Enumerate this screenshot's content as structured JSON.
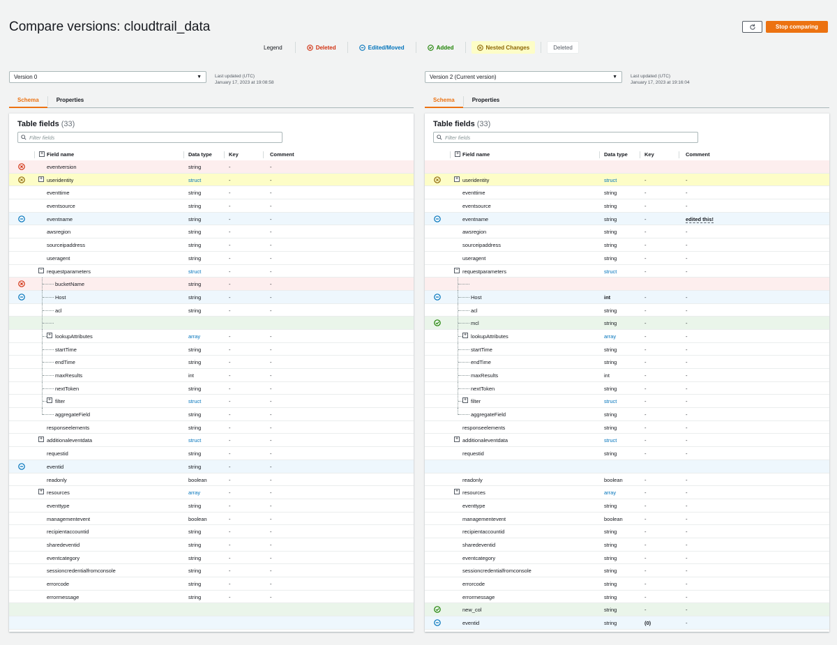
{
  "title": "Compare versions: cloudtrail_data",
  "stop_label": "Stop comparing",
  "legend": {
    "label": "Legend",
    "deleted": "Deleted",
    "edited": "Edited/Moved",
    "added": "Added",
    "nested": "Nested Changes",
    "plain": "Deleted"
  },
  "colors": {
    "accent": "#ec7211",
    "deleted": "#d13212",
    "edited": "#0073bb",
    "added": "#1d8102",
    "nested": "#8d6605"
  },
  "headers": {
    "field": "Field name",
    "type": "Data type",
    "key": "Key",
    "comment": "Comment"
  },
  "tabs": {
    "schema": "Schema",
    "properties": "Properties"
  },
  "left": {
    "version": "Version 0",
    "updated_label": "Last updated (UTC)",
    "updated_value": "January 17, 2023 at 19:08:58",
    "table_title": "Table fields",
    "count": "(33)",
    "filter_placeholder": "Filter fields",
    "rows": [
      {
        "s": "deleted",
        "name": "eventversion",
        "type": "string",
        "key": "-",
        "comment": "-",
        "depth": 0
      },
      {
        "s": "nested",
        "name": "useridentity",
        "type": "struct",
        "key": "-",
        "comment": "-",
        "depth": 0,
        "exp": "+",
        "link": true
      },
      {
        "s": "",
        "name": "eventtime",
        "type": "string",
        "key": "-",
        "comment": "-",
        "depth": 0
      },
      {
        "s": "",
        "name": "eventsource",
        "type": "string",
        "key": "-",
        "comment": "-",
        "depth": 0
      },
      {
        "s": "edited",
        "name": "eventname",
        "type": "string",
        "key": "-",
        "comment": "-",
        "depth": 0
      },
      {
        "s": "",
        "name": "awsregion",
        "type": "string",
        "key": "-",
        "comment": "-",
        "depth": 0
      },
      {
        "s": "",
        "name": "sourceipaddress",
        "type": "string",
        "key": "-",
        "comment": "-",
        "depth": 0
      },
      {
        "s": "",
        "name": "useragent",
        "type": "string",
        "key": "-",
        "comment": "-",
        "depth": 0
      },
      {
        "s": "",
        "name": "requestparameters",
        "type": "struct",
        "key": "-",
        "comment": "-",
        "depth": 0,
        "exp": "−",
        "link": true
      },
      {
        "s": "deleted",
        "name": "bucketName",
        "type": "string",
        "key": "-",
        "comment": "-",
        "depth": 1,
        "icon": true
      },
      {
        "s": "edited",
        "name": "Host",
        "type": "string",
        "key": "-",
        "comment": "-",
        "depth": 1,
        "icon": true
      },
      {
        "s": "",
        "name": "acl",
        "type": "string",
        "key": "-",
        "comment": "-",
        "depth": 1
      },
      {
        "s": "added",
        "name": "",
        "type": "",
        "key": "",
        "comment": "",
        "depth": 1,
        "blank": true
      },
      {
        "s": "",
        "name": "lookupAttributes",
        "type": "array",
        "key": "-",
        "comment": "-",
        "depth": 1,
        "exp": "+",
        "link": true
      },
      {
        "s": "",
        "name": "startTime",
        "type": "string",
        "key": "-",
        "comment": "-",
        "depth": 1
      },
      {
        "s": "",
        "name": "endTime",
        "type": "string",
        "key": "-",
        "comment": "-",
        "depth": 1
      },
      {
        "s": "",
        "name": "maxResults",
        "type": "int",
        "key": "-",
        "comment": "-",
        "depth": 1
      },
      {
        "s": "",
        "name": "nextToken",
        "type": "string",
        "key": "-",
        "comment": "-",
        "depth": 1
      },
      {
        "s": "",
        "name": "filter",
        "type": "struct",
        "key": "-",
        "comment": "-",
        "depth": 1,
        "exp": "+",
        "link": true
      },
      {
        "s": "",
        "name": "aggregateField",
        "type": "string",
        "key": "-",
        "comment": "-",
        "depth": 1,
        "last": true
      },
      {
        "s": "",
        "name": "responseelements",
        "type": "string",
        "key": "-",
        "comment": "-",
        "depth": 0
      },
      {
        "s": "",
        "name": "additionaleventdata",
        "type": "struct",
        "key": "-",
        "comment": "-",
        "depth": 0,
        "exp": "+",
        "link": true
      },
      {
        "s": "",
        "name": "requestid",
        "type": "string",
        "key": "-",
        "comment": "-",
        "depth": 0
      },
      {
        "s": "edited",
        "name": "eventid",
        "type": "string",
        "key": "-",
        "comment": "-",
        "depth": 0
      },
      {
        "s": "",
        "name": "readonly",
        "type": "boolean",
        "key": "-",
        "comment": "-",
        "depth": 0
      },
      {
        "s": "",
        "name": "resources",
        "type": "array",
        "key": "-",
        "comment": "-",
        "depth": 0,
        "exp": "+",
        "link": true
      },
      {
        "s": "",
        "name": "eventtype",
        "type": "string",
        "key": "-",
        "comment": "-",
        "depth": 0
      },
      {
        "s": "",
        "name": "managementevent",
        "type": "boolean",
        "key": "-",
        "comment": "-",
        "depth": 0
      },
      {
        "s": "",
        "name": "recipientaccountid",
        "type": "string",
        "key": "-",
        "comment": "-",
        "depth": 0
      },
      {
        "s": "",
        "name": "sharedeventid",
        "type": "string",
        "key": "-",
        "comment": "-",
        "depth": 0
      },
      {
        "s": "",
        "name": "eventcategory",
        "type": "string",
        "key": "-",
        "comment": "-",
        "depth": 0
      },
      {
        "s": "",
        "name": "sessioncredentialfromconsole",
        "type": "string",
        "key": "-",
        "comment": "-",
        "depth": 0
      },
      {
        "s": "",
        "name": "errorcode",
        "type": "string",
        "key": "-",
        "comment": "-",
        "depth": 0
      },
      {
        "s": "",
        "name": "errormessage",
        "type": "string",
        "key": "-",
        "comment": "-",
        "depth": 0
      },
      {
        "s": "added",
        "name": "",
        "type": "",
        "key": "",
        "comment": "",
        "depth": 0,
        "blank": true
      },
      {
        "s": "edited",
        "name": "",
        "type": "",
        "key": "",
        "comment": "",
        "depth": 0,
        "blank": true
      }
    ]
  },
  "right": {
    "version": "Version 2 (Current version)",
    "updated_label": "Last updated (UTC)",
    "updated_value": "January 17, 2023 at 19:16:04",
    "table_title": "Table fields",
    "count": "(33)",
    "filter_placeholder": "Filter fields",
    "rows": [
      {
        "s": "deleted",
        "name": "",
        "type": "",
        "key": "",
        "comment": "",
        "depth": 0,
        "blank": true
      },
      {
        "s": "nested",
        "name": "useridentity",
        "type": "struct",
        "key": "-",
        "comment": "-",
        "depth": 0,
        "exp": "+",
        "link": true
      },
      {
        "s": "",
        "name": "eventtime",
        "type": "string",
        "key": "-",
        "comment": "-",
        "depth": 0
      },
      {
        "s": "",
        "name": "eventsource",
        "type": "string",
        "key": "-",
        "comment": "-",
        "depth": 0
      },
      {
        "s": "edited",
        "name": "eventname",
        "type": "string",
        "key": "-",
        "comment": "edited this!",
        "depth": 0,
        "commentBold": true
      },
      {
        "s": "",
        "name": "awsregion",
        "type": "string",
        "key": "-",
        "comment": "-",
        "depth": 0
      },
      {
        "s": "",
        "name": "sourceipaddress",
        "type": "string",
        "key": "-",
        "comment": "-",
        "depth": 0
      },
      {
        "s": "",
        "name": "useragent",
        "type": "string",
        "key": "-",
        "comment": "-",
        "depth": 0
      },
      {
        "s": "",
        "name": "requestparameters",
        "type": "struct",
        "key": "-",
        "comment": "-",
        "depth": 0,
        "exp": "−",
        "link": true
      },
      {
        "s": "deleted",
        "name": "",
        "type": "",
        "key": "",
        "comment": "",
        "depth": 1,
        "blank": true
      },
      {
        "s": "edited",
        "name": "Host",
        "type": "int",
        "key": "-",
        "comment": "-",
        "depth": 1,
        "icon": true,
        "typeBold": true
      },
      {
        "s": "",
        "name": "acl",
        "type": "string",
        "key": "-",
        "comment": "-",
        "depth": 1
      },
      {
        "s": "added",
        "name": "mcl",
        "type": "string",
        "key": "-",
        "comment": "-",
        "depth": 1,
        "icon": true
      },
      {
        "s": "",
        "name": "lookupAttributes",
        "type": "array",
        "key": "-",
        "comment": "-",
        "depth": 1,
        "exp": "+",
        "link": true
      },
      {
        "s": "",
        "name": "startTime",
        "type": "string",
        "key": "-",
        "comment": "-",
        "depth": 1
      },
      {
        "s": "",
        "name": "endTime",
        "type": "string",
        "key": "-",
        "comment": "-",
        "depth": 1
      },
      {
        "s": "",
        "name": "maxResults",
        "type": "int",
        "key": "-",
        "comment": "-",
        "depth": 1
      },
      {
        "s": "",
        "name": "nextToken",
        "type": "string",
        "key": "-",
        "comment": "-",
        "depth": 1
      },
      {
        "s": "",
        "name": "filter",
        "type": "struct",
        "key": "-",
        "comment": "-",
        "depth": 1,
        "exp": "+",
        "link": true
      },
      {
        "s": "",
        "name": "aggregateField",
        "type": "string",
        "key": "-",
        "comment": "-",
        "depth": 1,
        "last": true
      },
      {
        "s": "",
        "name": "responseelements",
        "type": "string",
        "key": "-",
        "comment": "-",
        "depth": 0
      },
      {
        "s": "",
        "name": "additionaleventdata",
        "type": "struct",
        "key": "-",
        "comment": "-",
        "depth": 0,
        "exp": "+",
        "link": true
      },
      {
        "s": "",
        "name": "requestid",
        "type": "string",
        "key": "-",
        "comment": "-",
        "depth": 0
      },
      {
        "s": "edited",
        "name": "",
        "type": "",
        "key": "",
        "comment": "",
        "depth": 0,
        "blank": true,
        "noicon": true
      },
      {
        "s": "",
        "name": "readonly",
        "type": "boolean",
        "key": "-",
        "comment": "-",
        "depth": 0
      },
      {
        "s": "",
        "name": "resources",
        "type": "array",
        "key": "-",
        "comment": "-",
        "depth": 0,
        "exp": "+",
        "link": true
      },
      {
        "s": "",
        "name": "eventtype",
        "type": "string",
        "key": "-",
        "comment": "-",
        "depth": 0
      },
      {
        "s": "",
        "name": "managementevent",
        "type": "boolean",
        "key": "-",
        "comment": "-",
        "depth": 0
      },
      {
        "s": "",
        "name": "recipientaccountid",
        "type": "string",
        "key": "-",
        "comment": "-",
        "depth": 0
      },
      {
        "s": "",
        "name": "sharedeventid",
        "type": "string",
        "key": "-",
        "comment": "-",
        "depth": 0
      },
      {
        "s": "",
        "name": "eventcategory",
        "type": "string",
        "key": "-",
        "comment": "-",
        "depth": 0
      },
      {
        "s": "",
        "name": "sessioncredentialfromconsole",
        "type": "string",
        "key": "-",
        "comment": "-",
        "depth": 0
      },
      {
        "s": "",
        "name": "errorcode",
        "type": "string",
        "key": "-",
        "comment": "-",
        "depth": 0
      },
      {
        "s": "",
        "name": "errormessage",
        "type": "string",
        "key": "-",
        "comment": "-",
        "depth": 0
      },
      {
        "s": "added",
        "name": "new_col",
        "type": "string",
        "key": "-",
        "comment": "-",
        "depth": 0
      },
      {
        "s": "edited",
        "name": "eventid",
        "type": "string",
        "key": "(0)",
        "comment": "-",
        "depth": 0,
        "keyBold": true
      }
    ]
  }
}
